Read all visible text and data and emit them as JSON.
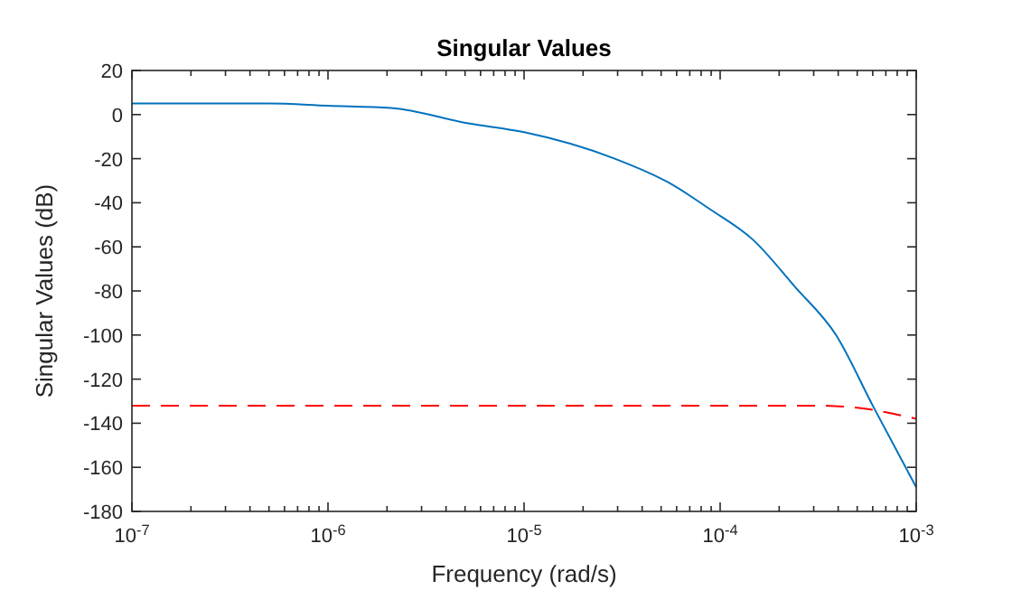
{
  "chart_data": {
    "type": "line",
    "title": "Singular Values",
    "xlabel": "Frequency (rad/s)",
    "ylabel": "Singular Values (dB)",
    "log": "x",
    "xlim": [
      1e-07,
      0.001
    ],
    "ylim": [
      -180,
      20
    ],
    "xticks": [
      {
        "value": 1e-07,
        "label": "10$^{-7}$"
      },
      {
        "value": 1e-06,
        "label": "10$^{-6}$"
      },
      {
        "value": 1e-05,
        "label": "10$^{-5}$"
      },
      {
        "value": 0.0001,
        "label": "10$^{-4}$"
      },
      {
        "value": 0.001,
        "label": "10$^{-3}$"
      }
    ],
    "yticks": [
      -180,
      -160,
      -140,
      -120,
      -100,
      -80,
      -60,
      -40,
      -20,
      0,
      20
    ],
    "grid": false,
    "series": [
      {
        "color": "#0072bd",
        "line_style": "solid",
        "x": [
          1e-07,
          5e-07,
          1e-06,
          2.1e-06,
          5.2e-06,
          1e-05,
          2.9e-05,
          5.5e-05,
          8.9e-05,
          0.000148,
          0.00024,
          0.00039,
          0.0006,
          0.001
        ],
        "values": [
          5,
          5,
          4,
          3,
          -4,
          -8,
          -20,
          -31,
          -43,
          -57,
          -78,
          -100,
          -132,
          -169
        ]
      },
      {
        "color": "#ff0000",
        "line_style": "dashed",
        "x": [
          1e-07,
          1e-05,
          0.0001,
          0.0003,
          0.0005,
          0.001
        ],
        "values": [
          -132,
          -132,
          -132,
          -132,
          -133,
          -138
        ]
      }
    ]
  }
}
